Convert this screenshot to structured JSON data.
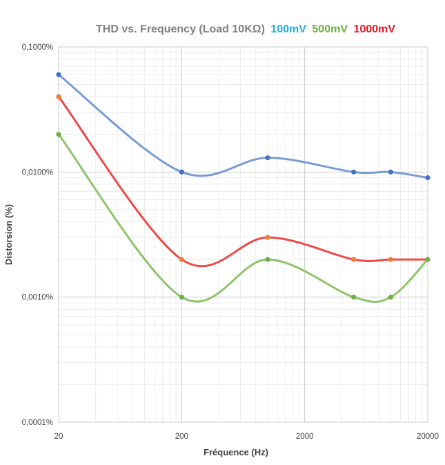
{
  "chart_data": {
    "type": "line",
    "title": {
      "main": "THD vs. Frequency (Load 10KΩ)",
      "parts": [
        {
          "text": "100mV",
          "color": "#1eaee6"
        },
        {
          "text": "500mV",
          "color": "#6cb33f"
        },
        {
          "text": "1000mV",
          "color": "#e8141b"
        }
      ]
    },
    "xlabel": "Fréquence (Hz)",
    "ylabel": "Distorsion (%)",
    "x_scale": "log",
    "y_scale": "log",
    "xlim": [
      20,
      20000
    ],
    "ylim": [
      0.0001,
      0.1
    ],
    "x_ticks": [
      {
        "value": 20,
        "label": "20"
      },
      {
        "value": 200,
        "label": "200"
      },
      {
        "value": 2000,
        "label": "2000"
      },
      {
        "value": 20000,
        "label": "20000"
      }
    ],
    "y_ticks": [
      {
        "value": 0.1,
        "label": "0,1000%"
      },
      {
        "value": 0.01,
        "label": "0,0100%"
      },
      {
        "value": 0.001,
        "label": "0,0010%"
      },
      {
        "value": 0.0001,
        "label": "0,0001%"
      }
    ],
    "grid": true,
    "minor_grid": true,
    "legend": "none",
    "series": [
      {
        "label": "100mV",
        "line_color": "#7a9bd6",
        "marker_color": "#4472c4",
        "points": [
          [
            20,
            0.06
          ],
          [
            200,
            0.01
          ],
          [
            1000,
            0.013
          ],
          [
            5000,
            0.01
          ],
          [
            10000,
            0.01
          ],
          [
            20000,
            0.009
          ]
        ]
      },
      {
        "label": "1000mV",
        "line_color": "#f04848",
        "marker_color": "#ed7d31",
        "points": [
          [
            20,
            0.04
          ],
          [
            200,
            0.002
          ],
          [
            1000,
            0.003
          ],
          [
            5000,
            0.002
          ],
          [
            10000,
            0.002
          ],
          [
            20000,
            0.002
          ]
        ]
      },
      {
        "label": "500mV",
        "line_color": "#8dc46a",
        "marker_color": "#70ad47",
        "points": [
          [
            20,
            0.02
          ],
          [
            200,
            0.001
          ],
          [
            1000,
            0.002
          ],
          [
            5000,
            0.001
          ],
          [
            10000,
            0.001
          ],
          [
            20000,
            0.002
          ]
        ]
      }
    ]
  }
}
